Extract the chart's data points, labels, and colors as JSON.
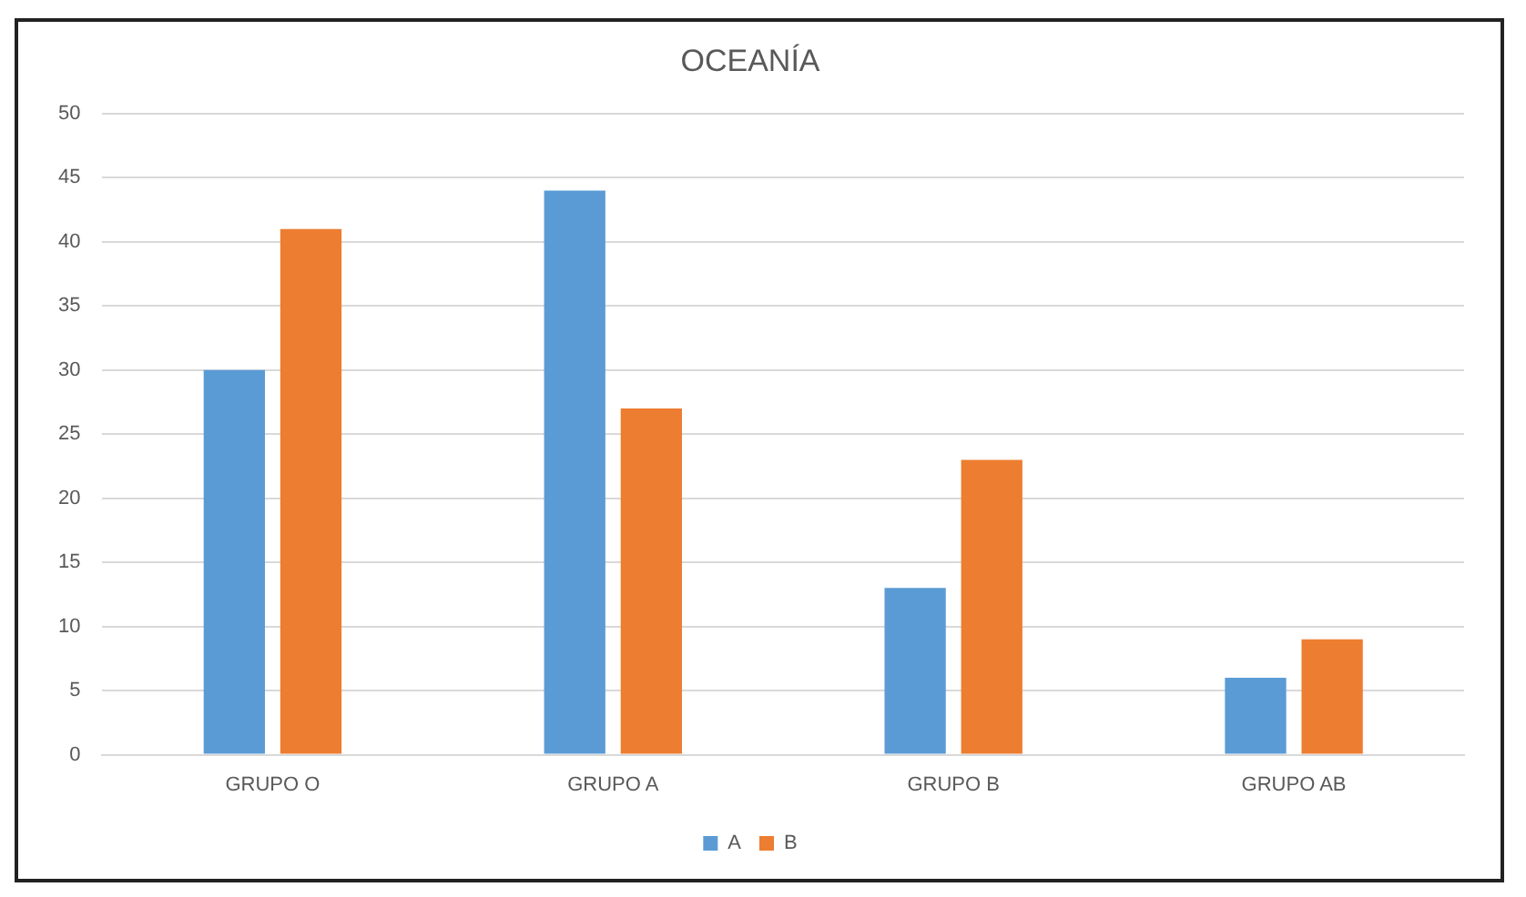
{
  "chart_data": {
    "type": "bar",
    "title": "OCEANÍA",
    "categories": [
      "GRUPO O",
      "GRUPO A",
      "GRUPO B",
      "GRUPO AB"
    ],
    "series": [
      {
        "name": "A",
        "color": "#5b9bd5",
        "values": [
          30,
          44,
          13,
          6
        ]
      },
      {
        "name": "B",
        "color": "#ed7d31",
        "values": [
          41,
          27,
          23,
          9
        ]
      }
    ],
    "ylim": [
      0,
      50
    ],
    "yticks": [
      0,
      5,
      10,
      15,
      20,
      25,
      30,
      35,
      40,
      45,
      50
    ],
    "grid": "y",
    "legend": "bottom"
  }
}
